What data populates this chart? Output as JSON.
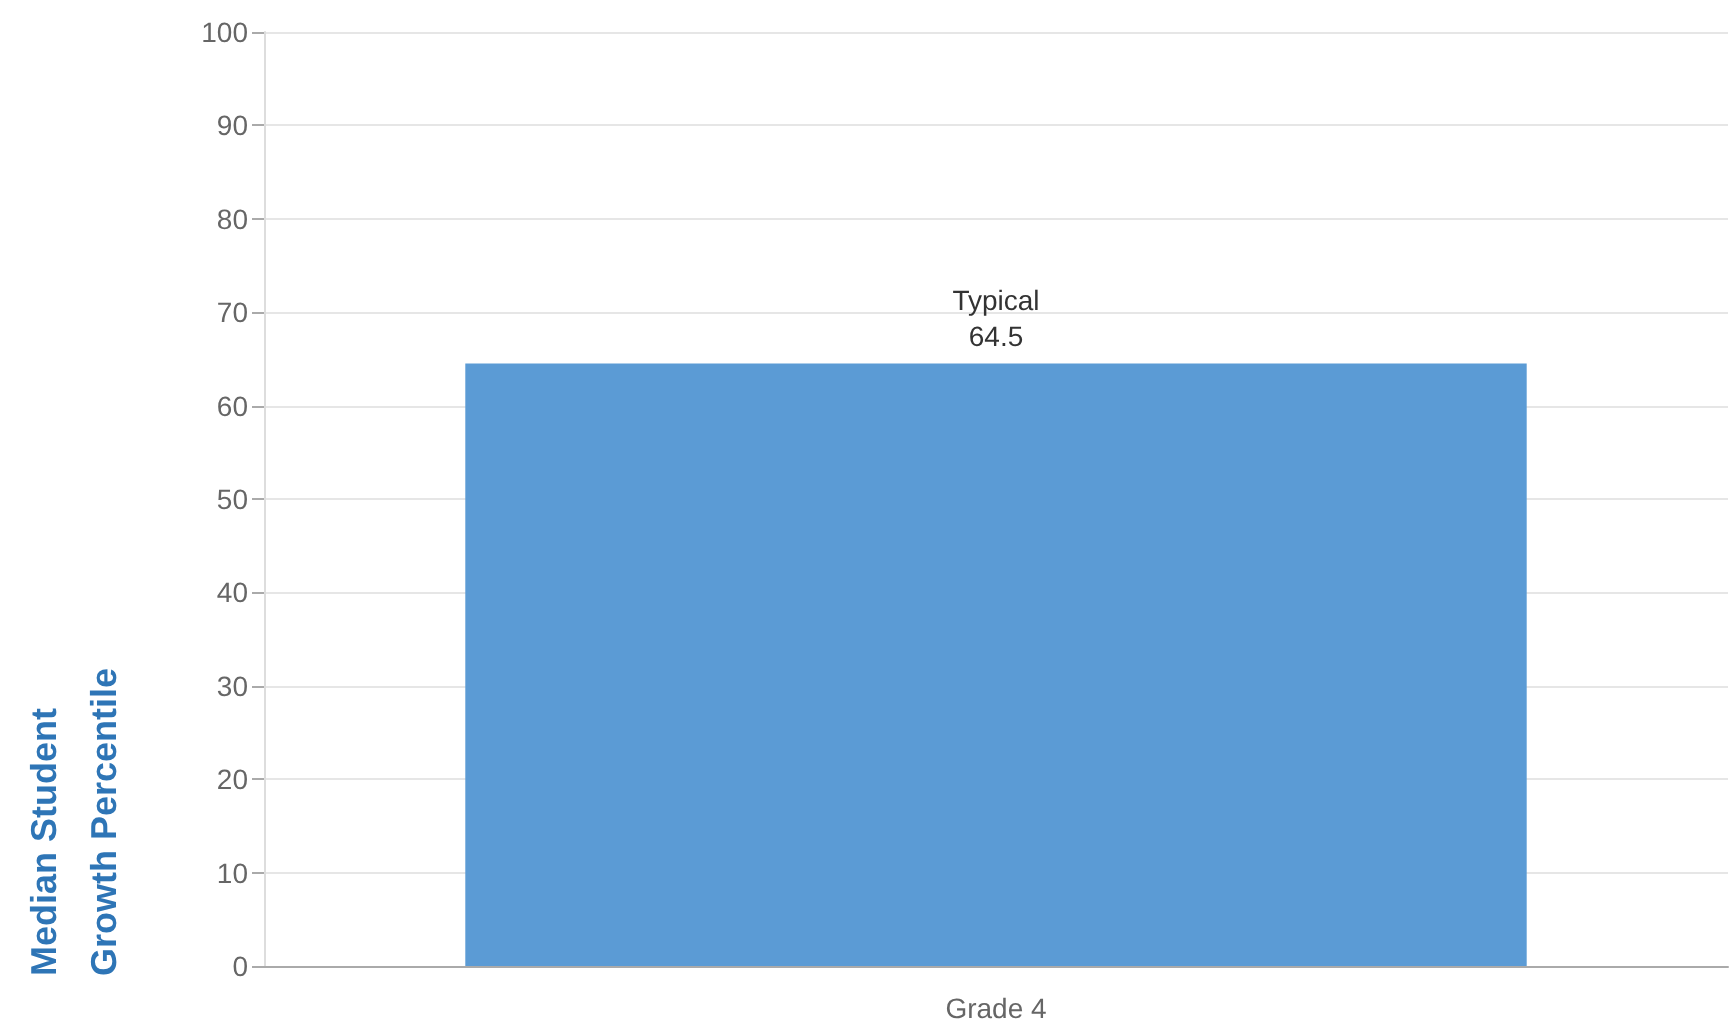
{
  "chart_data": {
    "type": "bar",
    "ylabel": "Median Student\nGrowth Percentile",
    "categories": [
      "Grade 4"
    ],
    "series": [
      {
        "color": "#5b9bd5",
        "values": [
          64.5
        ],
        "value_labels": [
          "Typical\n64.5"
        ]
      }
    ],
    "ylim": [
      0,
      100
    ],
    "yticks": [
      0,
      10,
      20,
      30,
      40,
      50,
      60,
      70,
      80,
      90,
      100
    ],
    "grid": "y"
  }
}
